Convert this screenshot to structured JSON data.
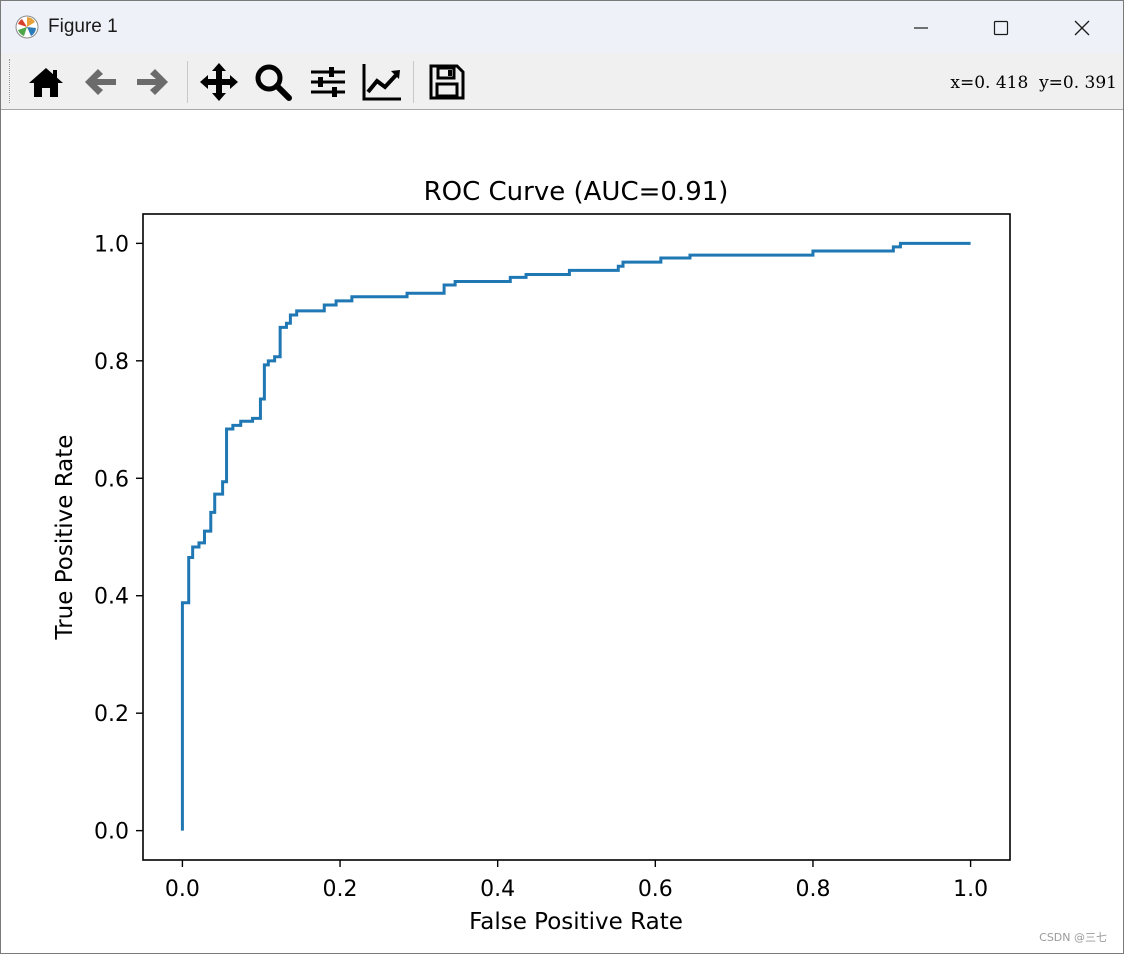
{
  "window": {
    "title": "Figure 1"
  },
  "toolbar": {
    "buttons": [
      "home-icon",
      "back-icon",
      "forward-icon",
      "pan-icon",
      "zoom-icon",
      "configure-subplots-icon",
      "edit-axis-icon",
      "save-icon"
    ],
    "coords": "x=0. 418  y=0. 391"
  },
  "watermark": "CSDN @三七",
  "colors": {
    "line": "#1f77b4",
    "titlebar": "#eef1f8",
    "toolbar": "#f0f0f0"
  },
  "chart_data": {
    "type": "line",
    "title": "ROC Curve (AUC=0.91)",
    "xlabel": "False Positive Rate",
    "ylabel": "True Positive Rate",
    "xlim": [
      -0.05,
      1.05
    ],
    "ylim": [
      -0.05,
      1.05
    ],
    "xticks": [
      "0.0",
      "0.2",
      "0.4",
      "0.6",
      "0.8",
      "1.0"
    ],
    "yticks": [
      "0.0",
      "0.2",
      "0.4",
      "0.6",
      "0.8",
      "1.0"
    ],
    "grid": false,
    "series": [
      {
        "x": [
          0,
          0,
          0.008,
          0.008,
          0.013,
          0.013,
          0.021,
          0.021,
          0.028,
          0.028,
          0.036,
          0.036,
          0.041,
          0.041,
          0.051,
          0.051,
          0.056,
          0.056,
          0.064,
          0.064,
          0.074,
          0.074,
          0.089,
          0.089,
          0.099,
          0.099,
          0.104,
          0.104,
          0.109,
          0.109,
          0.117,
          0.117,
          0.124,
          0.124,
          0.132,
          0.132,
          0.137,
          0.137,
          0.145,
          0.145,
          0.18,
          0.18,
          0.195,
          0.195,
          0.215,
          0.215,
          0.285,
          0.285,
          0.332,
          0.332,
          0.346,
          0.346,
          0.416,
          0.416,
          0.436,
          0.436,
          0.491,
          0.491,
          0.553,
          0.553,
          0.559,
          0.559,
          0.607,
          0.607,
          0.644,
          0.644,
          0.8,
          0.8,
          0.902,
          0.902,
          0.911,
          0.911,
          1.0
        ],
        "y": [
          0,
          0.388,
          0.388,
          0.465,
          0.465,
          0.483,
          0.483,
          0.49,
          0.49,
          0.51,
          0.51,
          0.542,
          0.542,
          0.573,
          0.573,
          0.594,
          0.594,
          0.684,
          0.684,
          0.69,
          0.69,
          0.697,
          0.697,
          0.702,
          0.702,
          0.735,
          0.735,
          0.793,
          0.793,
          0.8,
          0.8,
          0.807,
          0.807,
          0.857,
          0.857,
          0.864,
          0.864,
          0.878,
          0.878,
          0.885,
          0.885,
          0.895,
          0.895,
          0.902,
          0.902,
          0.909,
          0.909,
          0.915,
          0.915,
          0.929,
          0.929,
          0.935,
          0.935,
          0.942,
          0.942,
          0.947,
          0.947,
          0.954,
          0.954,
          0.961,
          0.961,
          0.968,
          0.968,
          0.975,
          0.975,
          0.98,
          0.98,
          0.987,
          0.987,
          0.994,
          0.994,
          1.0,
          1.0
        ]
      }
    ]
  }
}
